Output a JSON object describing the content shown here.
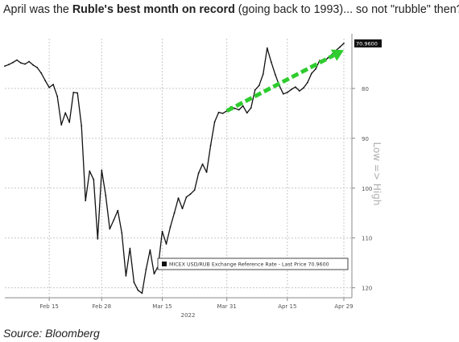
{
  "headline": {
    "pre": "April was the ",
    "bold": "Ruble's best month on record",
    "post": " (going back to 1993)... so not \"rubble\" then?"
  },
  "source": "Source: Bloomberg",
  "colors": {
    "series": "#111111",
    "arrow": "#2ecc2e",
    "grid": "#c8c8c8",
    "last_price_bg": "#111111"
  },
  "chart_data": {
    "type": "line",
    "xlabel": "",
    "ylabel": "Low => High",
    "year_label": "2022",
    "y_inverted": true,
    "ylim": [
      70,
      122
    ],
    "ytick_labels": [
      "80",
      "90",
      "100",
      "110",
      "120"
    ],
    "yticks": [
      80,
      90,
      100,
      110,
      120
    ],
    "xtick_labels": [
      "Feb 15",
      "Feb 28",
      "Mar 15",
      "Mar 31",
      "Apr 15",
      "Apr 29"
    ],
    "xticks": [
      "2022-02-15",
      "2022-02-28",
      "2022-03-15",
      "2022-03-31",
      "2022-04-15",
      "2022-04-29"
    ],
    "grid": true,
    "legend": {
      "position": "bottom-center",
      "label": "MICEX USD/RUB Exchange Reference Rate - Last Price 70.9600"
    },
    "last_price_label": "70.9600",
    "series": [
      {
        "name": "MICEX USD/RUB Exchange Reference Rate - Last Price",
        "x": [
          "2022-02-04",
          "2022-02-05",
          "2022-02-06",
          "2022-02-07",
          "2022-02-08",
          "2022-02-09",
          "2022-02-10",
          "2022-02-11",
          "2022-02-12",
          "2022-02-13",
          "2022-02-14",
          "2022-02-15",
          "2022-02-16",
          "2022-02-17",
          "2022-02-18",
          "2022-02-19",
          "2022-02-20",
          "2022-02-21",
          "2022-02-22",
          "2022-02-23",
          "2022-02-24",
          "2022-02-25",
          "2022-02-26",
          "2022-02-27",
          "2022-02-28",
          "2022-03-01",
          "2022-03-02",
          "2022-03-03",
          "2022-03-04",
          "2022-03-05",
          "2022-03-06",
          "2022-03-07",
          "2022-03-08",
          "2022-03-09",
          "2022-03-10",
          "2022-03-11",
          "2022-03-12",
          "2022-03-13",
          "2022-03-14",
          "2022-03-15",
          "2022-03-16",
          "2022-03-17",
          "2022-03-18",
          "2022-03-19",
          "2022-03-20",
          "2022-03-21",
          "2022-03-22",
          "2022-03-23",
          "2022-03-24",
          "2022-03-25",
          "2022-03-26",
          "2022-03-27",
          "2022-03-28",
          "2022-03-29",
          "2022-03-30",
          "2022-03-31",
          "2022-04-01",
          "2022-04-02",
          "2022-04-03",
          "2022-04-04",
          "2022-04-05",
          "2022-04-06",
          "2022-04-07",
          "2022-04-08",
          "2022-04-09",
          "2022-04-10",
          "2022-04-11",
          "2022-04-12",
          "2022-04-13",
          "2022-04-14",
          "2022-04-15",
          "2022-04-16",
          "2022-04-17",
          "2022-04-18",
          "2022-04-19",
          "2022-04-20",
          "2022-04-21",
          "2022-04-22",
          "2022-04-23",
          "2022-04-24",
          "2022-04-25",
          "2022-04-26",
          "2022-04-27",
          "2022-04-28",
          "2022-04-29"
        ],
        "y": [
          75.5,
          75.2,
          74.8,
          74.3,
          74.9,
          75.1,
          74.6,
          75.3,
          75.8,
          76.9,
          78.4,
          79.8,
          79.2,
          81.6,
          87.3,
          84.9,
          86.8,
          80.8,
          80.9,
          87.5,
          102.5,
          96.6,
          98.3,
          110.2,
          96.4,
          101.5,
          108.2,
          106.4,
          104.5,
          109.0,
          117.6,
          112.1,
          118.9,
          120.5,
          121.1,
          116.3,
          112.4,
          117.2,
          115.6,
          108.7,
          111.2,
          107.8,
          105.0,
          102.0,
          104.1,
          101.8,
          101.2,
          100.4,
          97.0,
          95.2,
          96.8,
          91.4,
          86.7,
          84.8,
          85.0,
          84.5,
          83.7,
          84.0,
          84.3,
          83.5,
          84.9,
          83.9,
          80.3,
          79.4,
          77.1,
          71.9,
          74.7,
          77.2,
          79.4,
          81.1,
          80.8,
          80.2,
          79.7,
          80.5,
          79.9,
          78.8,
          77.0,
          76.1,
          74.4,
          74.6,
          73.9,
          73.2,
          72.4,
          71.7,
          70.96
        ]
      }
    ],
    "annotations": [
      {
        "type": "arrow",
        "color": "#2ecc2e",
        "x_start": "2022-03-31",
        "y_start": 84.5,
        "x_end": "2022-04-29",
        "y_end": 72.3
      }
    ]
  }
}
